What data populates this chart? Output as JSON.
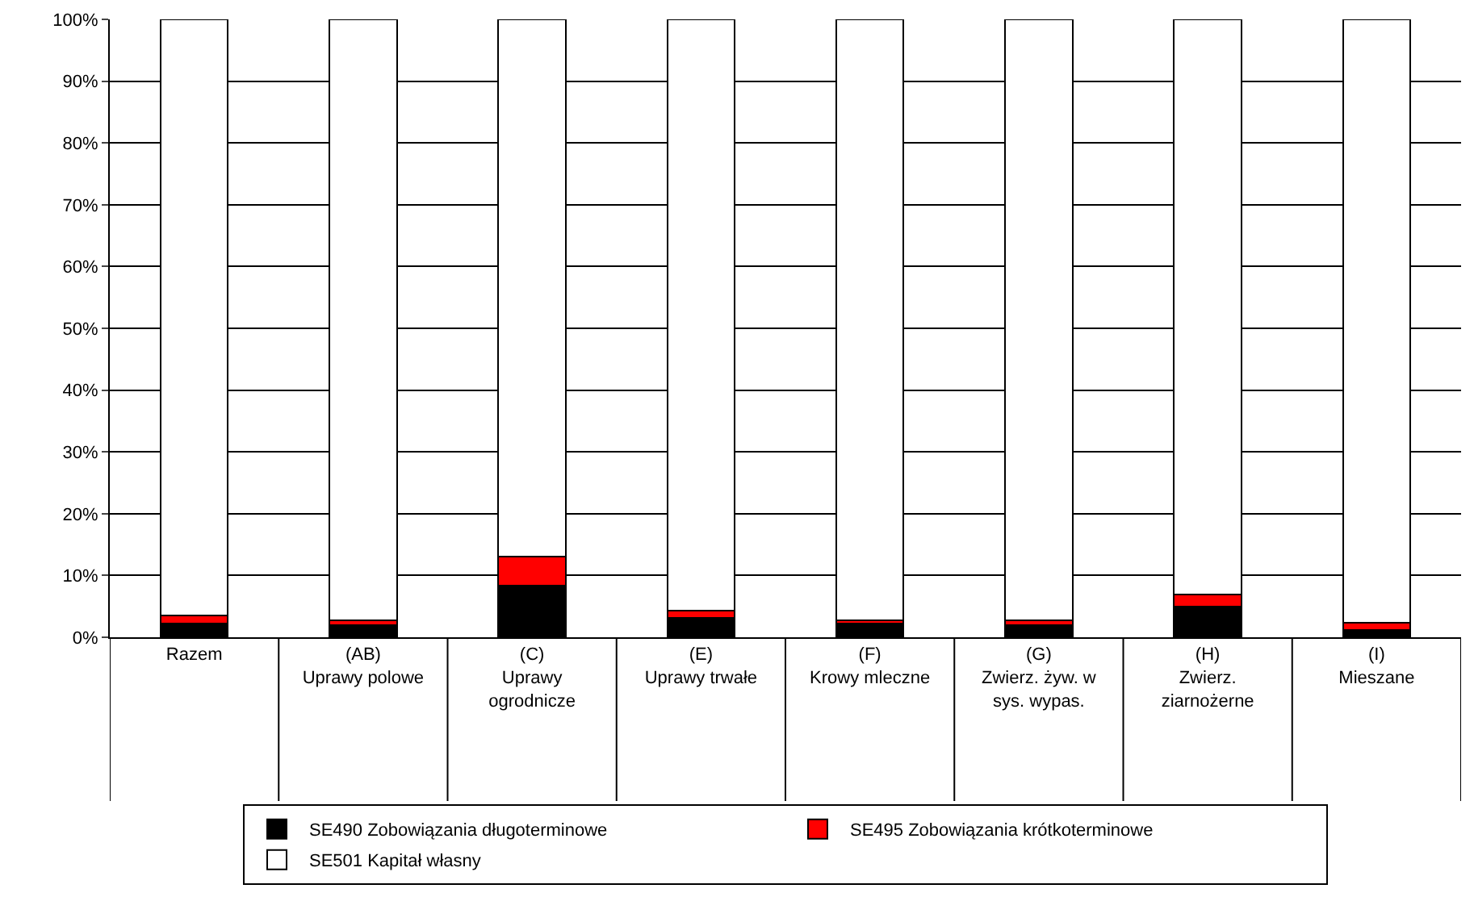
{
  "chart_data": {
    "type": "bar",
    "stacked": true,
    "categories": [
      "Razem",
      "(AB)\nUprawy polowe",
      "(C)\nUprawy\nogrodnicze",
      "(E)\nUprawy trwałe",
      "(F)\nKrowy mleczne",
      "(G)\nZwierz. żyw. w\nsys. wypas.",
      "(H)\nZwierz.\nziarnożerne",
      "(I)\nMieszane"
    ],
    "series": [
      {
        "name": "SE490 Zobowiązania długoterminowe",
        "color": "#000000",
        "values": [
          2.2,
          2.0,
          8.3,
          3.1,
          2.2,
          2.0,
          5.0,
          1.2
        ]
      },
      {
        "name": "SE495 Zobowiązania krótkoterminowe",
        "color": "#ff0000",
        "values": [
          1.3,
          0.8,
          4.7,
          1.2,
          0.6,
          0.7,
          1.9,
          1.1
        ]
      },
      {
        "name": "SE501 Kapitał własny",
        "color": "#ffffff",
        "values": [
          96.5,
          97.2,
          87.0,
          95.7,
          97.2,
          97.3,
          93.1,
          97.7
        ]
      }
    ],
    "ylim": [
      0,
      100
    ],
    "yticks": [
      {
        "value": 0,
        "label": "0%"
      },
      {
        "value": 10,
        "label": "10%"
      },
      {
        "value": 20,
        "label": "20%"
      },
      {
        "value": 30,
        "label": "30%"
      },
      {
        "value": 40,
        "label": "40%"
      },
      {
        "value": 50,
        "label": "50%"
      },
      {
        "value": 60,
        "label": "60%"
      },
      {
        "value": 70,
        "label": "70%"
      },
      {
        "value": 80,
        "label": "80%"
      },
      {
        "value": 90,
        "label": "90%"
      },
      {
        "value": 100,
        "label": "100%"
      }
    ],
    "grid": "y",
    "legend": "bottom"
  }
}
